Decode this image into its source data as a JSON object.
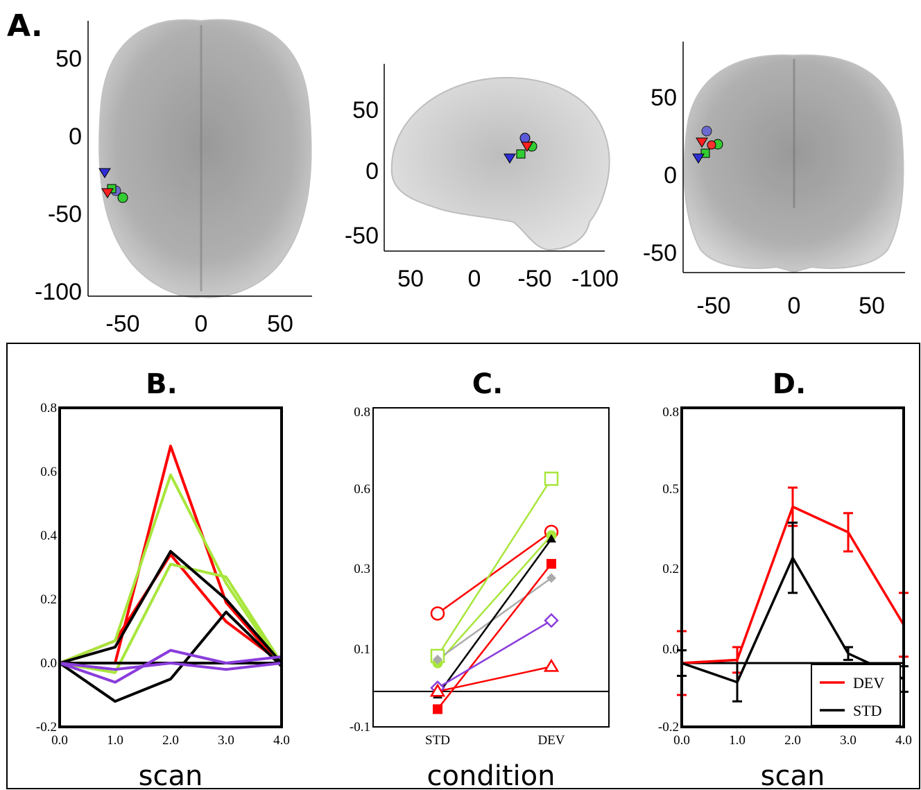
{
  "panel_a": {
    "label": "A.",
    "views": [
      {
        "x_ticks": [
          "-50",
          "0",
          "50"
        ],
        "y_ticks": [
          "50",
          "0",
          "-50",
          "-100"
        ]
      },
      {
        "x_ticks": [
          "50",
          "0",
          "-50",
          "-100"
        ],
        "y_ticks": [
          "50",
          "0",
          "-50"
        ]
      },
      {
        "x_ticks": [
          "-50",
          "0",
          "50"
        ],
        "y_ticks": [
          "50",
          "0",
          "-50"
        ]
      }
    ]
  },
  "chart_data": [
    {
      "panel": "B.",
      "type": "line",
      "xlabel": "scan",
      "x": [
        0.0,
        1.0,
        2.0,
        3.0,
        4.0
      ],
      "x_ticks": [
        "0.0",
        "1.0",
        "2.0",
        "3.0",
        "4.0"
      ],
      "y_ticks": [
        "0.8",
        "0.6",
        "0.4",
        "0.2",
        "0.0",
        "-0.2"
      ],
      "ylim": [
        -0.2,
        0.8
      ],
      "series": [
        {
          "color": "#ff0000",
          "values": [
            0.0,
            0.0,
            0.68,
            0.19,
            -0.01
          ]
        },
        {
          "color": "#ff0000",
          "values": [
            0.0,
            0.07,
            0.34,
            0.13,
            0.0
          ]
        },
        {
          "color": "#a8e63c",
          "values": [
            0.0,
            0.07,
            0.59,
            0.25,
            -0.01
          ]
        },
        {
          "color": "#a8e63c",
          "values": [
            0.0,
            -0.03,
            0.31,
            0.27,
            0.0
          ]
        },
        {
          "color": "#000000",
          "values": [
            0.0,
            0.05,
            0.35,
            0.2,
            0.0
          ]
        },
        {
          "color": "#000000",
          "values": [
            0.0,
            -0.12,
            -0.05,
            0.16,
            -0.01
          ]
        },
        {
          "color": "#000000",
          "values": [
            0.0,
            0.0,
            0.0,
            0.0,
            0.0
          ]
        },
        {
          "color": "#8a3ddb",
          "values": [
            0.0,
            -0.06,
            0.04,
            0.0,
            0.02
          ]
        },
        {
          "color": "#8a3ddb",
          "values": [
            0.0,
            -0.02,
            0.0,
            -0.02,
            0.0
          ]
        }
      ]
    },
    {
      "panel": "C.",
      "type": "line",
      "xlabel": "condition",
      "categories": [
        "STD",
        "DEV"
      ],
      "y_ticks": [
        "0.8",
        "0.6",
        "0.3",
        "0.1",
        "-0.1"
      ],
      "ylim": [
        -0.1,
        0.8
      ],
      "baseline": 0.0,
      "series": [
        {
          "color": "#ff0000",
          "marker": "open-circle",
          "values": [
            0.22,
            0.45
          ]
        },
        {
          "color": "#a8e63c",
          "marker": "open-square",
          "values": [
            0.1,
            0.6
          ]
        },
        {
          "color": "#a8e63c",
          "marker": "filled-circle",
          "values": [
            0.08,
            0.44
          ]
        },
        {
          "color": "#aaaaaa",
          "marker": "filled-diamond",
          "values": [
            0.09,
            0.32
          ]
        },
        {
          "color": "#000000",
          "marker": "filled-triangle",
          "values": [
            -0.01,
            0.43
          ]
        },
        {
          "color": "#ff0000",
          "marker": "filled-square",
          "values": [
            -0.05,
            0.36
          ]
        },
        {
          "color": "#8a3ddb",
          "marker": "open-diamond",
          "values": [
            0.01,
            0.2
          ]
        },
        {
          "color": "#ff0000",
          "marker": "open-triangle",
          "values": [
            0.0,
            0.07
          ]
        }
      ]
    },
    {
      "panel": "D.",
      "type": "line",
      "xlabel": "scan",
      "x": [
        0.0,
        1.0,
        2.0,
        3.0,
        4.0
      ],
      "x_ticks": [
        "0.0",
        "1.0",
        "2.0",
        "3.0",
        "4.0"
      ],
      "y_ticks": [
        "0.8",
        "0.5",
        "0.2",
        "0.0",
        "-0.2"
      ],
      "ylim": [
        -0.2,
        0.8
      ],
      "baseline": 0.0,
      "legend_position": "bottom-right",
      "series": [
        {
          "name": "DEV",
          "color": "#ff0000",
          "values": [
            0.0,
            0.01,
            0.49,
            0.41,
            0.12
          ],
          "errors": [
            0.1,
            0.04,
            0.06,
            0.06,
            0.1
          ]
        },
        {
          "name": "STD",
          "color": "#000000",
          "values": [
            0.0,
            -0.06,
            0.33,
            0.03,
            -0.05
          ],
          "errors": [
            0.04,
            0.06,
            0.11,
            0.02,
            0.04
          ]
        }
      ]
    }
  ]
}
